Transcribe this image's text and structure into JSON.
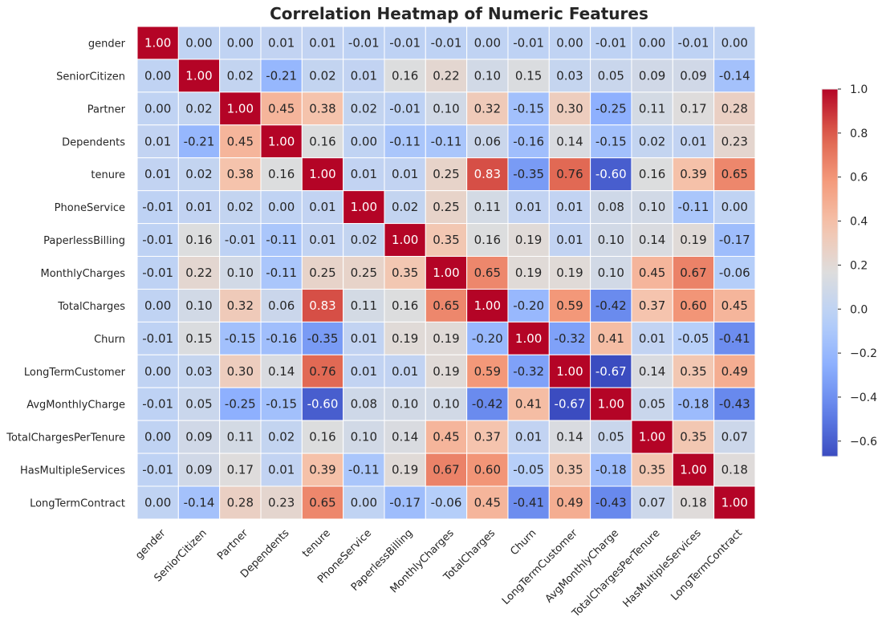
{
  "chart_data": {
    "type": "heatmap",
    "title": "Correlation Heatmap of Numeric Features",
    "row_labels": [
      "gender",
      "SeniorCitizen",
      "Partner",
      "Dependents",
      "tenure",
      "PhoneService",
      "PaperlessBilling",
      "MonthlyCharges",
      "TotalCharges",
      "Churn",
      "LongTermCustomer",
      "AvgMonthlyCharge",
      "TotalChargesPerTenure",
      "HasMultipleServices",
      "LongTermContract"
    ],
    "col_labels": [
      "gender",
      "SeniorCitizen",
      "Partner",
      "Dependents",
      "tenure",
      "PhoneService",
      "PaperlessBilling",
      "MonthlyCharges",
      "TotalCharges",
      "Churn",
      "LongTermCustomer",
      "AvgMonthlyCharge",
      "TotalChargesPerTenure",
      "HasMultipleServices",
      "LongTermContract"
    ],
    "values": [
      [
        1.0,
        -0.0,
        -0.0,
        0.01,
        0.01,
        -0.01,
        -0.01,
        -0.01,
        -0.0,
        -0.01,
        0.0,
        -0.01,
        -0.0,
        -0.01,
        0.0
      ],
      [
        -0.0,
        1.0,
        0.02,
        -0.21,
        0.02,
        0.01,
        0.16,
        0.22,
        0.1,
        0.15,
        0.03,
        0.05,
        0.09,
        0.09,
        -0.14
      ],
      [
        -0.0,
        0.02,
        1.0,
        0.45,
        0.38,
        0.02,
        -0.01,
        0.1,
        0.32,
        -0.15,
        0.3,
        -0.25,
        0.11,
        0.17,
        0.28
      ],
      [
        0.01,
        -0.21,
        0.45,
        1.0,
        0.16,
        -0.0,
        -0.11,
        -0.11,
        0.06,
        -0.16,
        0.14,
        -0.15,
        0.02,
        0.01,
        0.23
      ],
      [
        0.01,
        0.02,
        0.38,
        0.16,
        1.0,
        0.01,
        0.01,
        0.25,
        0.83,
        -0.35,
        0.76,
        -0.6,
        0.16,
        0.39,
        0.65
      ],
      [
        -0.01,
        0.01,
        0.02,
        -0.0,
        0.01,
        1.0,
        0.02,
        0.25,
        0.11,
        0.01,
        0.01,
        0.08,
        0.1,
        -0.11,
        0.0
      ],
      [
        -0.01,
        0.16,
        -0.01,
        -0.11,
        0.01,
        0.02,
        1.0,
        0.35,
        0.16,
        0.19,
        0.01,
        0.1,
        0.14,
        0.19,
        -0.17
      ],
      [
        -0.01,
        0.22,
        0.1,
        -0.11,
        0.25,
        0.25,
        0.35,
        1.0,
        0.65,
        0.19,
        0.19,
        0.1,
        0.45,
        0.67,
        -0.06
      ],
      [
        -0.0,
        0.1,
        0.32,
        0.06,
        0.83,
        0.11,
        0.16,
        0.65,
        1.0,
        -0.2,
        0.59,
        -0.42,
        0.37,
        0.6,
        0.45
      ],
      [
        -0.01,
        0.15,
        -0.15,
        -0.16,
        -0.35,
        0.01,
        0.19,
        0.19,
        -0.2,
        1.0,
        -0.32,
        0.41,
        0.01,
        -0.05,
        -0.41
      ],
      [
        0.0,
        0.03,
        0.3,
        0.14,
        0.76,
        0.01,
        0.01,
        0.19,
        0.59,
        -0.32,
        1.0,
        -0.67,
        0.14,
        0.35,
        0.49
      ],
      [
        -0.01,
        0.05,
        -0.25,
        -0.15,
        -0.6,
        0.08,
        0.1,
        0.1,
        -0.42,
        0.41,
        -0.67,
        1.0,
        0.05,
        -0.18,
        -0.43
      ],
      [
        -0.0,
        0.09,
        0.11,
        0.02,
        0.16,
        0.1,
        0.14,
        0.45,
        0.37,
        0.01,
        0.14,
        0.05,
        1.0,
        0.35,
        0.07
      ],
      [
        -0.01,
        0.09,
        0.17,
        0.01,
        0.39,
        -0.11,
        0.19,
        0.67,
        0.6,
        -0.05,
        0.35,
        -0.18,
        0.35,
        1.0,
        0.18
      ],
      [
        0.0,
        -0.14,
        0.28,
        0.23,
        0.65,
        0.0,
        -0.17,
        -0.06,
        0.45,
        -0.41,
        0.49,
        -0.43,
        0.07,
        0.18,
        1.0
      ]
    ],
    "colormap": "coolwarm",
    "vmin": -0.67,
    "vmax": 1.0,
    "colorbar_ticks": [
      "1.0",
      "0.8",
      "0.6",
      "0.4",
      "0.2",
      "0.0",
      "−0.2",
      "−0.4",
      "−0.6"
    ],
    "colorbar_tick_values": [
      1.0,
      0.8,
      0.6,
      0.4,
      0.2,
      0.0,
      -0.2,
      -0.4,
      -0.6
    ],
    "annotation_format": "2 decimals"
  }
}
